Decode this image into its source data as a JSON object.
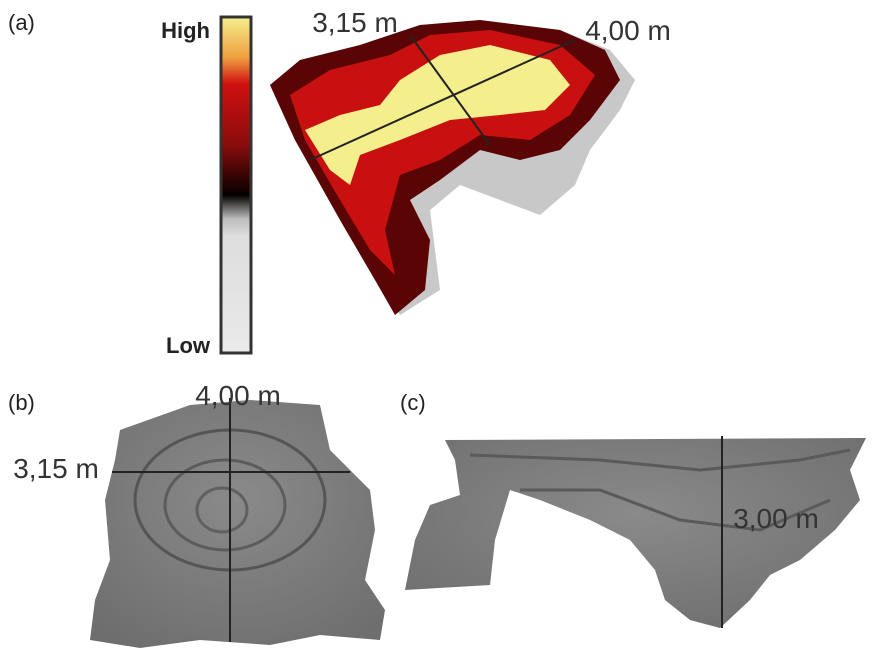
{
  "panels": [
    {
      "label": "(a)",
      "colorbar": {
        "high": "High",
        "low": "Low"
      },
      "dimensions": [
        "3,15 m",
        "4,00 m"
      ]
    },
    {
      "label": "(b)",
      "dimensions": [
        "4,00 m",
        "3,15 m"
      ]
    },
    {
      "label": "(c)",
      "dimensions": [
        "3,00 m"
      ]
    }
  ]
}
